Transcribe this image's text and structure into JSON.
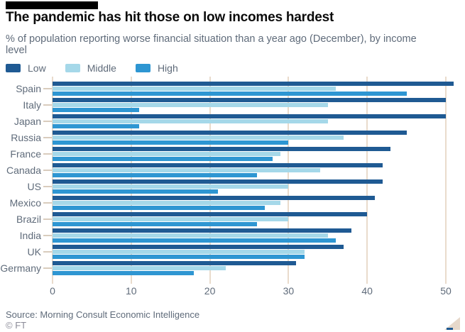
{
  "header": {
    "title": "The pandemic has hit those on low incomes hardest",
    "subtitle": "% of population reporting worse financial situation than a year ago (December), by income level"
  },
  "legend": {
    "items": [
      {
        "label": "Low",
        "color": "#1f5a93"
      },
      {
        "label": "Middle",
        "color": "#a5d8e9"
      },
      {
        "label": "High",
        "color": "#2e96d2"
      }
    ]
  },
  "chart_data": {
    "type": "bar",
    "orientation": "horizontal",
    "title": "The pandemic has hit those on low incomes hardest",
    "xlabel": "",
    "ylabel": "",
    "xlim": [
      0,
      50
    ],
    "xticks": [
      0,
      10,
      20,
      30,
      40,
      50
    ],
    "grid": true,
    "legend_position": "top",
    "gridline_color": "#e9dbcc",
    "categories": [
      "Spain",
      "Italy",
      "Japan",
      "Russia",
      "France",
      "Canada",
      "US",
      "Mexico",
      "Brazil",
      "India",
      "UK",
      "Germany"
    ],
    "series": [
      {
        "name": "Low",
        "color": "#1f5a93",
        "values": [
          51,
          50,
          50,
          45,
          43,
          42,
          42,
          41,
          40,
          38,
          37,
          31
        ]
      },
      {
        "name": "Middle",
        "color": "#a5d8e9",
        "values": [
          36,
          35,
          35,
          37,
          29,
          34,
          30,
          29,
          30,
          35,
          32,
          22
        ]
      },
      {
        "name": "High",
        "color": "#2e96d2",
        "values": [
          45,
          11,
          11,
          30,
          28,
          26,
          21,
          27,
          26,
          36,
          32,
          18
        ]
      }
    ]
  },
  "axis": {
    "tick_labels": [
      "0",
      "10",
      "20",
      "30",
      "40",
      "50"
    ]
  },
  "footer": {
    "source": "Source: Morning Consult Economic Intelligence",
    "credit": "© FT"
  }
}
